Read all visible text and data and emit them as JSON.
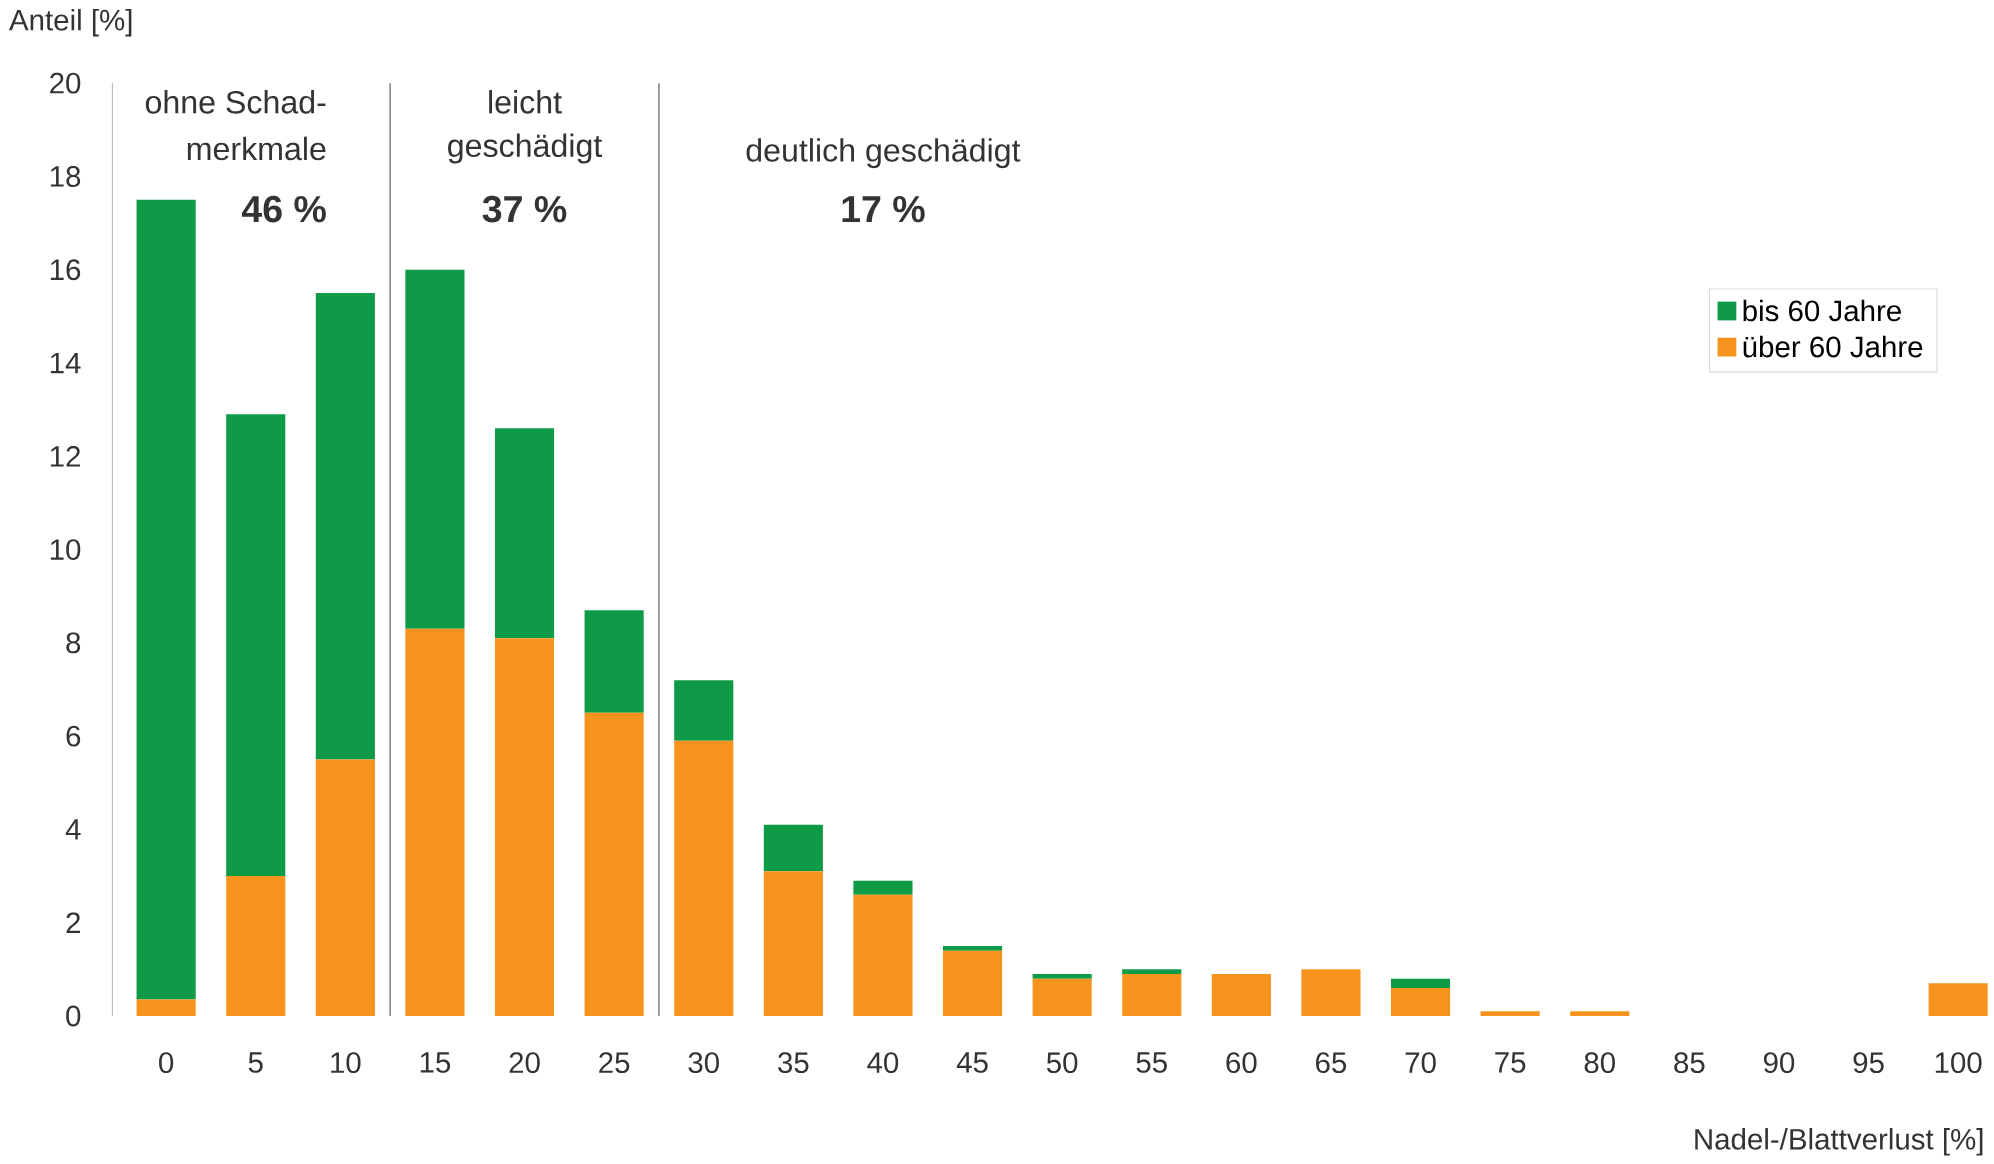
{
  "chart_data": {
    "type": "bar",
    "stacked": true,
    "x": [
      0,
      5,
      10,
      15,
      20,
      25,
      30,
      35,
      40,
      45,
      50,
      55,
      60,
      65,
      70,
      75,
      80,
      85,
      90,
      95,
      100
    ],
    "series": [
      {
        "name": "über 60 Jahre",
        "color": "#f7941d",
        "values": [
          0.35,
          3.0,
          5.5,
          8.3,
          8.1,
          6.5,
          5.9,
          3.1,
          2.6,
          1.4,
          0.8,
          0.9,
          0.9,
          1.0,
          0.6,
          0.1,
          0.1,
          0,
          0,
          0,
          0.7
        ]
      },
      {
        "name": "bis 60 Jahre",
        "color": "#0f9a48",
        "values": [
          17.15,
          9.9,
          10.0,
          7.7,
          4.5,
          2.2,
          1.3,
          1.0,
          0.3,
          0.1,
          0.1,
          0.1,
          0,
          0,
          0.2,
          0,
          0,
          0,
          0,
          0,
          0
        ]
      }
    ],
    "xlim": [
      -3,
      102
    ],
    "xticks": [
      0,
      5,
      10,
      15,
      20,
      25,
      30,
      35,
      40,
      45,
      50,
      55,
      60,
      65,
      70,
      75,
      80,
      85,
      90,
      95,
      100
    ],
    "ylim": [
      0,
      20
    ],
    "yticks": [
      0,
      2,
      4,
      6,
      8,
      10,
      12,
      14,
      16,
      18,
      20
    ],
    "xlabel": "Nadel-/Blattverlust [%]",
    "ylabel": "Anteil [%]",
    "ref_lines": [
      {
        "axis": "x",
        "value": 12.5,
        "color": "#888888"
      },
      {
        "axis": "x",
        "value": 27.5,
        "color": "#888888"
      }
    ],
    "annotations": [
      "ohne Schad-",
      "merkmale",
      "46 %",
      "leicht",
      "geschädigt",
      "37 %",
      "deutlich geschädigt",
      "17 %"
    ],
    "legend": "top right",
    "grid": false
  }
}
